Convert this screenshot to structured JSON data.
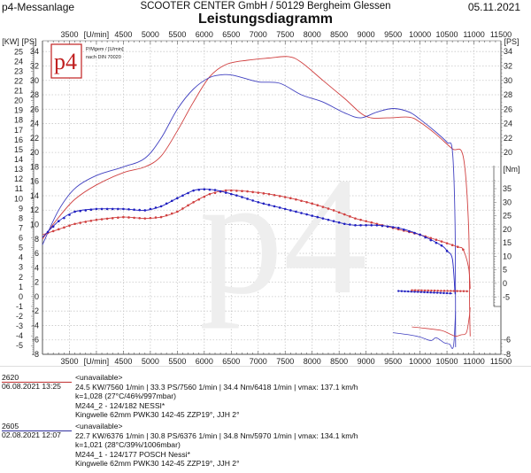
{
  "header": {
    "app_title": "p4-Messanlage",
    "company": "SCOOTER CENTER GmbH / 50129 Bergheim Glessen",
    "date": "05.11.2021"
  },
  "logo": {
    "text": "p4",
    "note_line1": "P/Mgem / [U/min]",
    "note_line2": "nach DIN 70020",
    "watermark": "p4"
  },
  "chart_data": {
    "type": "line",
    "title": "Leistungsdiagramm",
    "xlabel": "[U/min]",
    "x_ticks": [
      3500,
      4500,
      5000,
      5500,
      6000,
      6500,
      7000,
      7500,
      8000,
      8500,
      9000,
      9500,
      10000,
      10500,
      11000,
      11500
    ],
    "x_unit_label": "[U/min]",
    "xlim": [
      3000,
      11500
    ],
    "y_left_kw_label": "[KW]",
    "y_left_kw_ticks": [
      25,
      24,
      23,
      22,
      21,
      20,
      19,
      18,
      17,
      16,
      15,
      14,
      13,
      12,
      11,
      10,
      9,
      8,
      7,
      6,
      5,
      4,
      3,
      2,
      1,
      0,
      -1,
      -2,
      -3,
      -4,
      -5
    ],
    "y_ps_label": "[PS]",
    "y_ps_ticks": [
      34,
      32,
      30,
      28,
      26,
      24,
      22,
      20,
      18,
      16,
      14,
      12,
      10,
      8,
      6,
      4,
      2,
      0,
      -2,
      -4,
      -6,
      -8
    ],
    "ylim_ps": [
      -8,
      35
    ],
    "y_right_ps_ticks": [
      34,
      32,
      30,
      28,
      26,
      24,
      22,
      20
    ],
    "y_right_ps_lower_ticks": [
      -6,
      -8
    ],
    "y_nm_label": "[Nm]",
    "y_nm_ticks": [
      35,
      30,
      25,
      20,
      15,
      10,
      5,
      0,
      -5
    ],
    "grid": true,
    "series": [
      {
        "name": "2620 power",
        "color": "#d04040",
        "kind": "power",
        "x": [
          3000,
          3300,
          3600,
          4000,
          4500,
          4900,
          5200,
          5500,
          5800,
          6100,
          6400,
          6800,
          7200,
          7560,
          7800,
          8200,
          8600,
          9000,
          9400,
          9800,
          10000,
          10300,
          10600,
          10800,
          10900,
          10920,
          10930
        ],
        "y": [
          8.0,
          11.0,
          13.5,
          15.5,
          17.2,
          18.0,
          19.5,
          23.0,
          27.0,
          30.5,
          32.2,
          32.8,
          33.1,
          33.3,
          32.5,
          30.0,
          27.5,
          25.0,
          24.8,
          24.9,
          24.2,
          22.5,
          20.5,
          19.5,
          10.0,
          -2.0,
          -5.5
        ]
      },
      {
        "name": "2605 power",
        "color": "#4040c0",
        "kind": "power",
        "x": [
          3000,
          3300,
          3600,
          4000,
          4500,
          4900,
          5200,
          5500,
          5800,
          6100,
          6376,
          6600,
          7000,
          7400,
          7800,
          8200,
          8600,
          8900,
          9200,
          9500,
          9800,
          10000,
          10300,
          10500,
          10600,
          10650,
          10660
        ],
        "y": [
          7.2,
          12.0,
          15.0,
          16.8,
          18.0,
          19.2,
          22.0,
          26.0,
          28.8,
          30.4,
          30.8,
          30.6,
          29.8,
          29.6,
          28.0,
          27.0,
          25.5,
          24.8,
          25.6,
          26.1,
          25.6,
          24.6,
          22.8,
          21.4,
          20.2,
          10.0,
          -7.0
        ]
      },
      {
        "name": "2620 torque",
        "color": "#d04040",
        "kind": "torque",
        "x": [
          3000,
          3300,
          3600,
          4000,
          4500,
          4900,
          5200,
          5500,
          5800,
          6100,
          6418,
          6800,
          7200,
          7600,
          8000,
          8400,
          8800,
          9200,
          9600,
          10000,
          10400,
          10700,
          10800,
          10900,
          10930
        ],
        "y": [
          18.0,
          20.0,
          22.0,
          23.5,
          24.5,
          24.0,
          24.5,
          26.5,
          30.0,
          33.0,
          34.4,
          34.0,
          33.0,
          31.5,
          29.5,
          27.0,
          24.0,
          22.0,
          20.0,
          18.0,
          15.5,
          13.5,
          12.5,
          6.0,
          -2.0
        ]
      },
      {
        "name": "2605 torque",
        "color": "#2020c0",
        "kind": "torque",
        "x": [
          3000,
          3300,
          3600,
          4000,
          4500,
          4900,
          5200,
          5500,
          5800,
          5970,
          6200,
          6600,
          7000,
          7400,
          7800,
          8200,
          8600,
          8800,
          9200,
          9600,
          10000,
          10400,
          10500,
          10600,
          10650
        ],
        "y": [
          17.0,
          23.0,
          26.5,
          27.5,
          27.5,
          27.0,
          28.5,
          31.5,
          34.3,
          34.8,
          34.5,
          32.5,
          30.0,
          28.0,
          26.0,
          24.0,
          22.0,
          21.5,
          21.5,
          20.5,
          18.0,
          14.0,
          12.0,
          9.0,
          -4.0
        ]
      }
    ]
  },
  "runs": [
    {
      "id": "2620",
      "datetime": "06.08.2021  13:25",
      "color": "#c03030",
      "name": "<unavailable>",
      "values": "24.5 KW/7560 1/min  |  33.3 PS/7560 1/min  |  34.4 Nm/6418 1/min  |  vmax: 137.1 km/h",
      "conditions": "k=1,028 (27°C/46%/997mbar)",
      "setup": "M244_2 - 124/182 NESSI*",
      "notes": "Kingwelle 62mm PWK30 142-45 ZZP19°, JJH 2°"
    },
    {
      "id": "2605",
      "datetime": "02.08.2021  12:07",
      "color": "#3030a0",
      "name": "<unavailable>",
      "values": "22.7 KW/6376 1/min  |  30.8 PS/6376 1/min  |  34.8 Nm/5970 1/min  |  vmax: 134.1 km/h",
      "conditions": "k=1,021 (28°C/39%/1006mbar)",
      "setup": "M244_1 - 124/177 POSCH Nessi*",
      "notes": "Kingwelle 62mm PWK30 142-45 ZZP19°, JJH 2°"
    }
  ]
}
